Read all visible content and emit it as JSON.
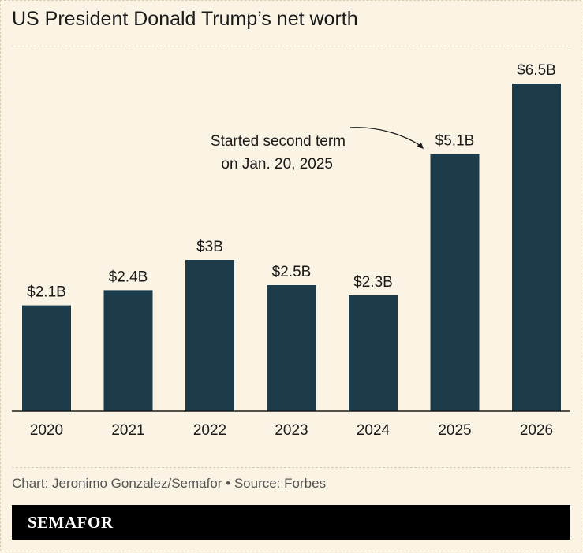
{
  "title": "US President Donald Trump’s net worth",
  "credit": "Chart: Jeronimo Gonzalez/Semafor • Source: Forbes",
  "brand": "SEMAFOR",
  "colors": {
    "bar": "#1c3c4b",
    "background": "#fbf4e4"
  },
  "chart_data": {
    "type": "bar",
    "title": "US President Donald Trump’s net worth",
    "xlabel": "",
    "ylabel": "",
    "categories": [
      "2020",
      "2021",
      "2022",
      "2023",
      "2024",
      "2025",
      "2026"
    ],
    "values": [
      2.1,
      2.4,
      3,
      2.5,
      2.3,
      5.1,
      6.5
    ],
    "value_labels": [
      "$2.1B",
      "$2.4B",
      "$3B",
      "$2.5B",
      "$2.3B",
      "$5.1B",
      "$6.5B"
    ],
    "ylim": [
      0,
      7
    ],
    "grid": false,
    "annotation": {
      "lines": [
        "Started second term",
        "on Jan. 20, 2025"
      ],
      "points_to": "2025"
    }
  }
}
